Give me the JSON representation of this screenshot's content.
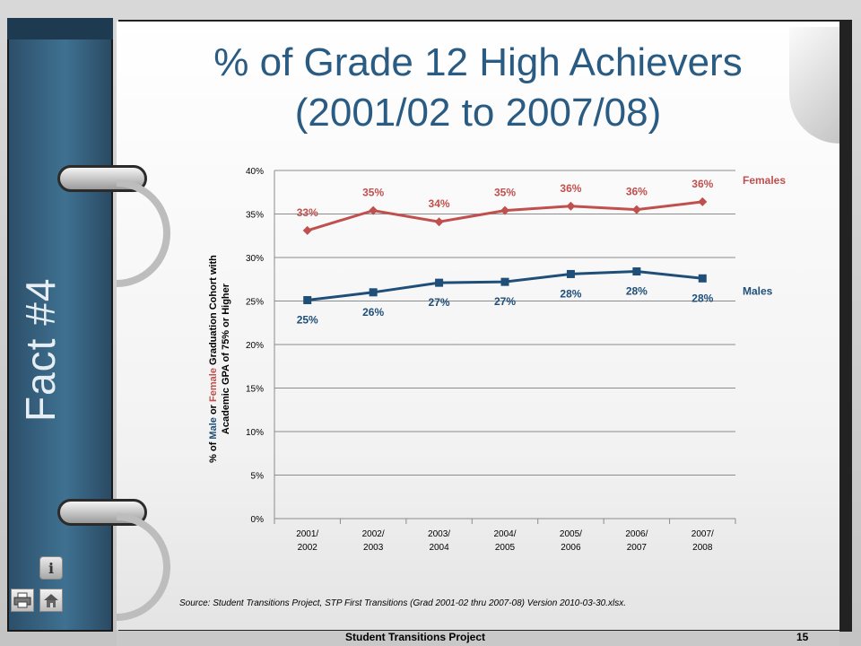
{
  "slide": {
    "title_line1": "% of Grade 12 High Achievers",
    "title_line2": "(2001/02 to 2007/08)",
    "side_label": "Fact #4",
    "source": "Source:  Student Transitions Project, STP First Transitions (Grad 2001-02 thru 2007-08) Version 2010-03-30.xlsx.",
    "footer": "Student Transitions Project",
    "page_number": "15"
  },
  "ylabel": {
    "part1": "% of ",
    "male": "Male",
    "part2": " or ",
    "female": "Female",
    "part3": " Graduation Cohort with",
    "line2": "Academic GPA of 75% or Higher"
  },
  "icons": [
    "info-icon",
    "printer-icon",
    "home-icon"
  ],
  "chart_data": {
    "type": "line",
    "x_tick_labels": [
      [
        "2001/",
        "2002"
      ],
      [
        "2002/",
        "2003"
      ],
      [
        "2003/",
        "2004"
      ],
      [
        "2004/",
        "2005"
      ],
      [
        "2005/",
        "2006"
      ],
      [
        "2006/",
        "2007"
      ],
      [
        "2007/",
        "2008"
      ]
    ],
    "categories": [
      "2001/2002",
      "2002/2003",
      "2003/2004",
      "2004/2005",
      "2005/2006",
      "2006/2007",
      "2007/2008"
    ],
    "ylim": [
      0,
      40
    ],
    "yticks": [
      "0%",
      "5%",
      "10%",
      "15%",
      "20%",
      "25%",
      "30%",
      "35%",
      "40%"
    ],
    "grid": true,
    "series": [
      {
        "name": "Females",
        "color": "#c0504d",
        "marker": "diamond",
        "values": [
          33.1,
          35.4,
          34.1,
          35.4,
          35.9,
          35.5,
          36.4
        ],
        "labels": [
          "33%",
          "35%",
          "34%",
          "35%",
          "36%",
          "36%",
          "36%"
        ]
      },
      {
        "name": "Males",
        "color": "#1f4e79",
        "marker": "square",
        "values": [
          25.1,
          26.0,
          27.1,
          27.2,
          28.1,
          28.4,
          27.6
        ],
        "labels": [
          "25%",
          "26%",
          "27%",
          "27%",
          "28%",
          "28%",
          "28%"
        ]
      }
    ]
  }
}
